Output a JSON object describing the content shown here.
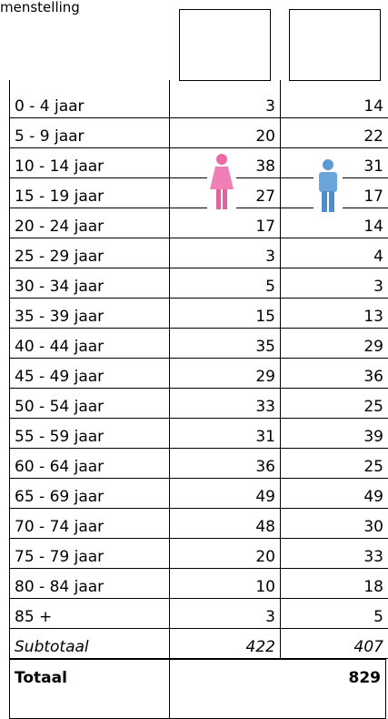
{
  "header": {
    "title": "menstelling"
  },
  "table": {
    "rows": [
      [
        "0 - 4 jaar",
        3,
        14
      ],
      [
        "5 - 9 jaar",
        20,
        22
      ],
      [
        "10 - 14 jaar",
        38,
        31
      ],
      [
        "15 - 19 jaar",
        27,
        17
      ],
      [
        "20 - 24 jaar",
        17,
        14
      ],
      [
        "25 - 29 jaar",
        3,
        4
      ],
      [
        "30 - 34 jaar",
        5,
        3
      ],
      [
        "35 - 39 jaar",
        15,
        13
      ],
      [
        "40 - 44 jaar",
        35,
        29
      ],
      [
        "45 - 49 jaar",
        29,
        36
      ],
      [
        "50 - 54 jaar",
        33,
        25
      ],
      [
        "55 - 59 jaar",
        31,
        39
      ],
      [
        "60 - 64 jaar",
        36,
        25
      ],
      [
        "65 - 69 jaar",
        49,
        49
      ],
      [
        "70 - 74 jaar",
        48,
        30
      ],
      [
        "75 - 79 jaar",
        20,
        33
      ],
      [
        "80 - 84 jaar",
        10,
        18
      ],
      [
        "85 +",
        3,
        5
      ]
    ],
    "subtotal": [
      "Subtotaal",
      422,
      407
    ],
    "total": [
      "Totaal",
      829
    ]
  }
}
